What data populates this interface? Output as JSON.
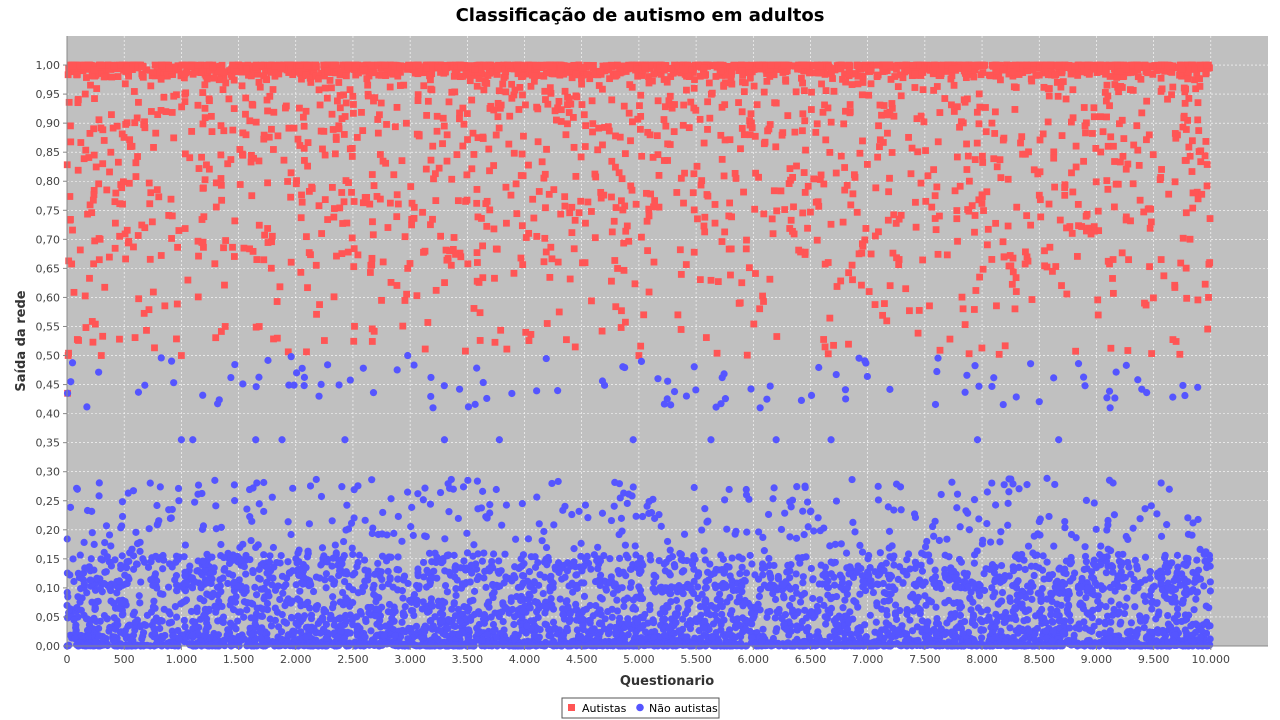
{
  "chart_data": {
    "type": "scatter",
    "title": "Classificação de autismo em adultos",
    "xlabel": "Questionario",
    "ylabel": "Saída da rede",
    "xlim": [
      0,
      10500
    ],
    "ylim": [
      0,
      1.05
    ],
    "grid": true,
    "legend_position": "bottom-center",
    "x_ticks": [
      0,
      500,
      1000,
      1500,
      2000,
      2500,
      3000,
      3500,
      4000,
      4500,
      5000,
      5500,
      6000,
      6500,
      7000,
      7500,
      8000,
      8500,
      9000,
      9500,
      10000
    ],
    "x_tick_labels": [
      "0",
      "500",
      "1.000",
      "1.500",
      "2.000",
      "2.500",
      "3.000",
      "3.500",
      "4.000",
      "4.500",
      "5.000",
      "5.500",
      "6.000",
      "6.500",
      "7.000",
      "7.500",
      "8.000",
      "8.500",
      "9.000",
      "9.500",
      "10.000"
    ],
    "y_ticks": [
      0,
      0.05,
      0.1,
      0.15,
      0.2,
      0.25,
      0.3,
      0.35,
      0.4,
      0.45,
      0.5,
      0.55,
      0.6,
      0.65,
      0.7,
      0.75,
      0.8,
      0.85,
      0.9,
      0.95,
      1.0
    ],
    "y_tick_labels": [
      "0,00",
      "0,05",
      "0,10",
      "0,15",
      "0,20",
      "0,25",
      "0,30",
      "0,35",
      "0,40",
      "0,45",
      "0,50",
      "0,55",
      "0,60",
      "0,65",
      "0,70",
      "0,75",
      "0,80",
      "0,85",
      "0,90",
      "0,95",
      "1,00"
    ],
    "series": [
      {
        "name": "Autistas",
        "marker": "square",
        "color": "#FF5555",
        "x_range": [
          0,
          10000
        ],
        "y_range": [
          0.435,
          1.0
        ],
        "note_points": [
          [
            5,
            0.435
          ],
          [
            10,
            0.5
          ],
          [
            300,
            0.5
          ],
          [
            1000,
            0.5
          ],
          [
            5000,
            0.5
          ],
          [
            9980,
            0.6
          ],
          [
            9990,
            0.66
          ]
        ]
      },
      {
        "name": "Não autistas",
        "marker": "circle",
        "color": "#5555FF",
        "x_range": [
          0,
          10000
        ],
        "y_range": [
          0.0,
          0.5
        ],
        "note_points": [
          [
            5,
            0.435
          ],
          [
            1000,
            0.355
          ],
          [
            1100,
            0.355
          ],
          [
            1650,
            0.355
          ],
          [
            1880,
            0.355
          ],
          [
            2430,
            0.355
          ],
          [
            3300,
            0.355
          ],
          [
            3780,
            0.355
          ],
          [
            4950,
            0.355
          ],
          [
            5630,
            0.355
          ],
          [
            6200,
            0.355
          ],
          [
            6680,
            0.355
          ],
          [
            7960,
            0.355
          ],
          [
            8670,
            0.355
          ],
          [
            9120,
            0.41
          ],
          [
            6060,
            0.41
          ],
          [
            3200,
            0.41
          ]
        ]
      }
    ]
  }
}
